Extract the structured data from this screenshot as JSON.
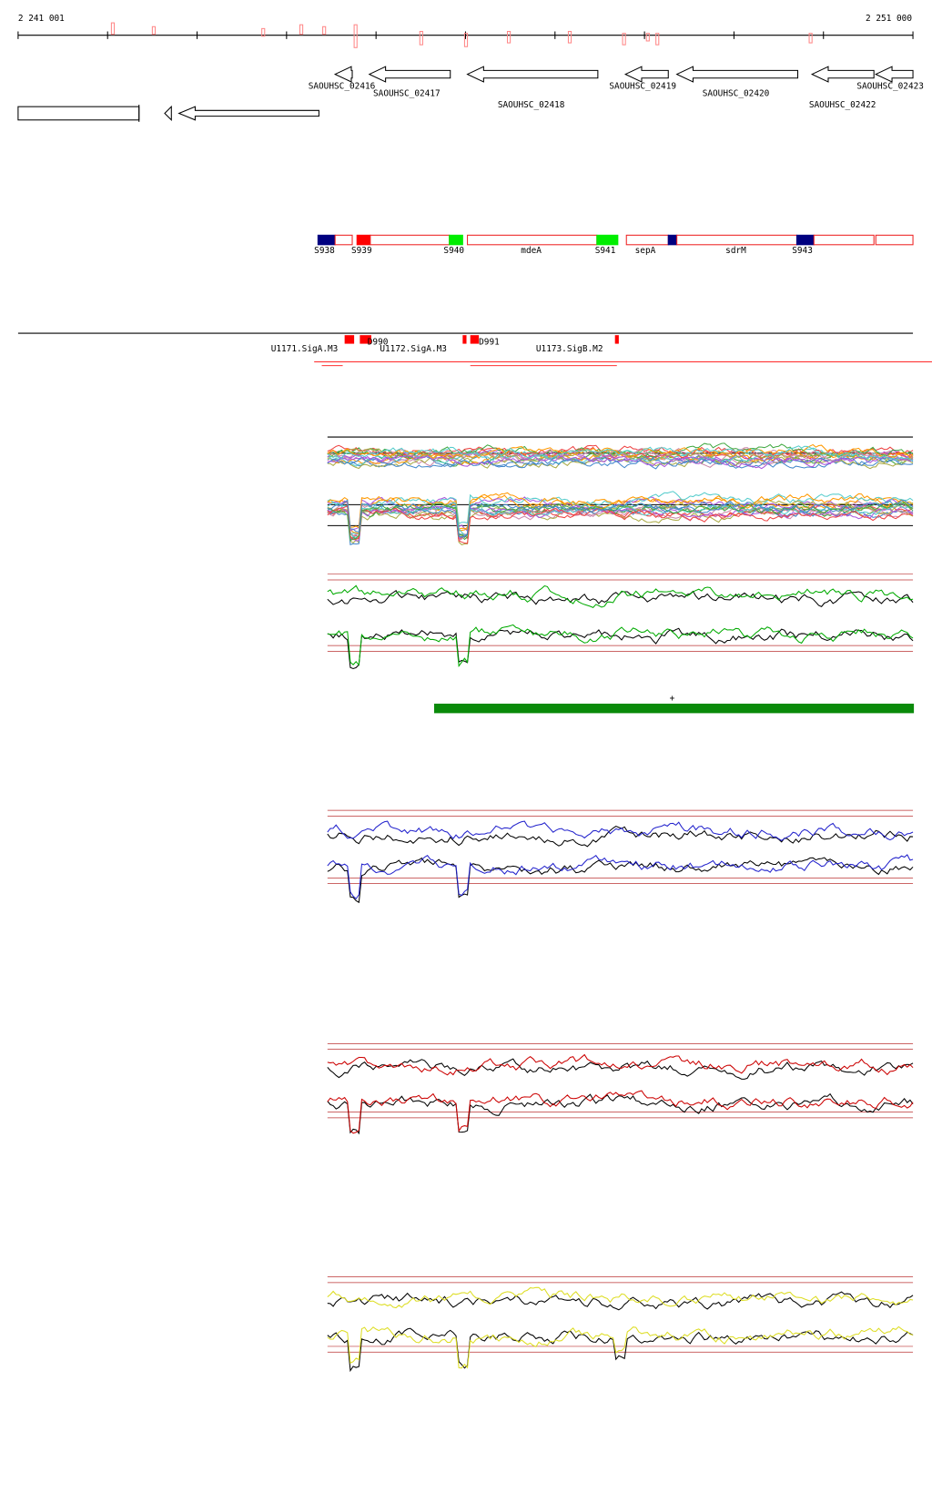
{
  "header": {
    "start": "2 241 001",
    "end": "2 251 000"
  },
  "genes": [
    {
      "label": "SAOUHSC_02416"
    },
    {
      "label": "SAOUHSC_02417"
    },
    {
      "label": "SAOUHSC_02418"
    },
    {
      "label": "SAOUHSC_02419"
    },
    {
      "label": "SAOUHSC_02420"
    },
    {
      "label": "SAOUHSC_02422"
    },
    {
      "label": "SAOUHSC_02423"
    }
  ],
  "features": [
    {
      "label": "S938"
    },
    {
      "label": "S939"
    },
    {
      "label": "S940"
    },
    {
      "label": "mdeA"
    },
    {
      "label": "S941"
    },
    {
      "label": "sepA"
    },
    {
      "label": "sdrM"
    },
    {
      "label": "S943"
    }
  ],
  "transcripts": [
    {
      "label": "U1171.SigA.M3"
    },
    {
      "label": "D990"
    },
    {
      "label": "U1172.SigA.M3"
    },
    {
      "label": "D991"
    },
    {
      "label": "U1173.SigB.M2"
    }
  ]
}
